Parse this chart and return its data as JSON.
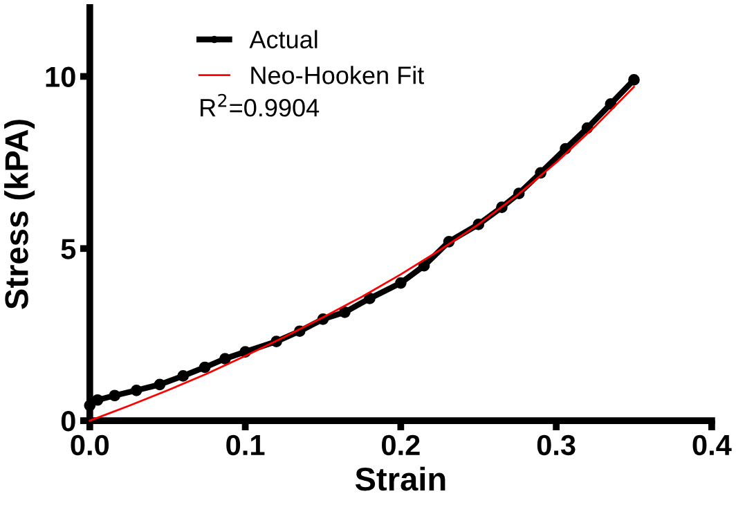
{
  "chart_data": {
    "type": "line",
    "xlabel": "Strain",
    "ylabel": "Stress (kPA)",
    "xlim": [
      0,
      0.4
    ],
    "ylim": [
      0,
      12
    ],
    "xticks": [
      {
        "value": 0,
        "label": "0.0"
      },
      0.1,
      0.2,
      0.3,
      0.4
    ],
    "yticks": [
      0,
      5,
      10
    ],
    "grid": false,
    "legend": "top left",
    "annotations": [
      "R$^{2}$=0.9904"
    ],
    "series": [
      {
        "name": "Actual",
        "color": "#000000",
        "marker": "circle",
        "x": [
          0,
          0.005,
          0.016,
          0.03,
          0.045,
          0.06,
          0.074,
          0.087,
          0.1,
          0.12,
          0.135,
          0.15,
          0.164,
          0.18,
          0.2,
          0.215,
          0.231,
          0.25,
          0.265,
          0.276,
          0.29,
          0.306,
          0.32,
          0.335,
          0.35
        ],
        "values": [
          0.44,
          0.6,
          0.73,
          0.88,
          1.05,
          1.3,
          1.55,
          1.8,
          2.0,
          2.3,
          2.6,
          2.95,
          3.15,
          3.55,
          4.0,
          4.5,
          5.2,
          5.7,
          6.2,
          6.6,
          7.2,
          7.9,
          8.5,
          9.2,
          9.9
        ]
      },
      {
        "name": "Neo-Hooken Fit",
        "color": "#ff0000",
        "marker": "none",
        "x": [
          0,
          0.025,
          0.05,
          0.075,
          0.1,
          0.125,
          0.15,
          0.175,
          0.2,
          0.225,
          0.25,
          0.275,
          0.3,
          0.325,
          0.35
        ],
        "values": [
          0,
          0.43,
          0.88,
          1.36,
          1.88,
          2.43,
          3.0,
          3.6,
          4.25,
          4.95,
          5.7,
          6.55,
          7.5,
          8.55,
          9.7
        ]
      }
    ]
  }
}
